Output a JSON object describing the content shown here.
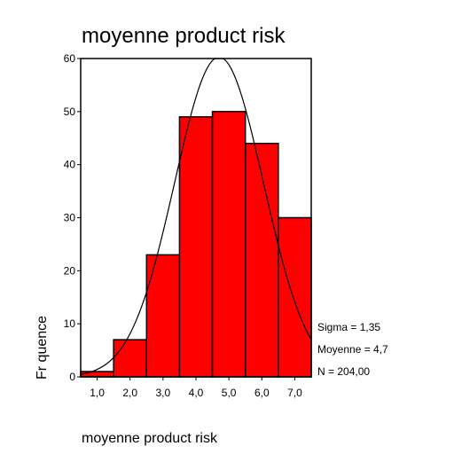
{
  "chart_data": {
    "type": "bar",
    "title": "moyenne product risk",
    "xlabel": "moyenne product risk",
    "ylabel": "Fr quence",
    "ylim": [
      0,
      60
    ],
    "xlim": [
      0.5,
      7.5
    ],
    "y_ticks": [
      "0",
      "10",
      "20",
      "30",
      "40",
      "50",
      "60"
    ],
    "x_ticks": [
      "1,0",
      "2,0",
      "3,0",
      "4,0",
      "5,0",
      "6,0",
      "7,0"
    ],
    "bins": [
      {
        "from": 0.5,
        "to": 1.5,
        "value": 1
      },
      {
        "from": 1.5,
        "to": 2.5,
        "value": 7
      },
      {
        "from": 2.5,
        "to": 3.5,
        "value": 23
      },
      {
        "from": 3.5,
        "to": 4.5,
        "value": 49
      },
      {
        "from": 4.5,
        "to": 5.5,
        "value": 50
      },
      {
        "from": 5.5,
        "to": 6.5,
        "value": 44
      },
      {
        "from": 6.5,
        "to": 7.5,
        "value": 30
      }
    ],
    "stats": [
      "Sigma = 1,35",
      "Moyenne = 4,7",
      "N = 204,00"
    ],
    "normal_curve": {
      "mean": 4.7,
      "sigma": 1.35,
      "n": 204
    },
    "bar_color": "#ff0000",
    "grid": false
  }
}
